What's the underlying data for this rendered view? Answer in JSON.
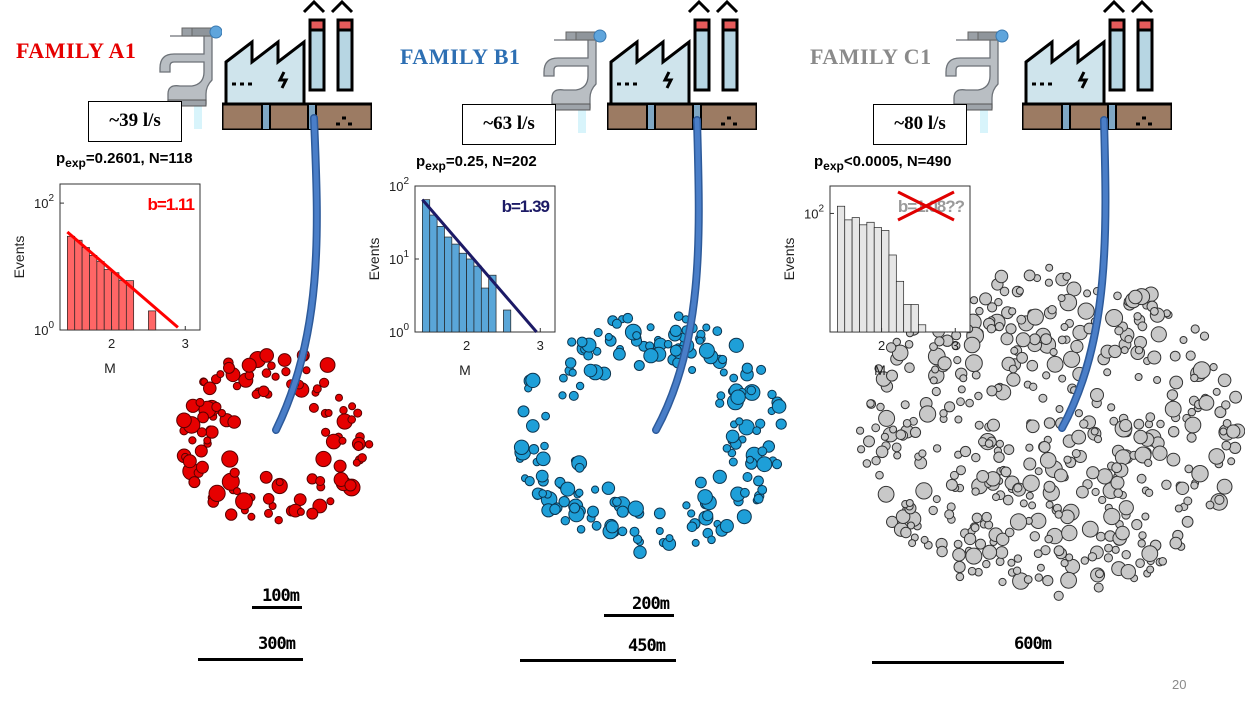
{
  "page_number": "20",
  "colors": {
    "A1": "#e60000",
    "B1": "#1e9fd8",
    "C1": "#c8c8c8",
    "A1_title": "#e60000",
    "B1_title": "#2d6fb3",
    "C1_title": "#8a8a8a",
    "A1_fit": "#ff0000",
    "B1_fit": "#1c1a66",
    "pipe": "#4a7ec8"
  },
  "icons": [
    "faucet-icon",
    "factory-icon"
  ],
  "families": [
    {
      "id": "A1",
      "title": "FAMILY A1",
      "flow": "~39 l/s",
      "pexp_sub": "exp",
      "pexp_rest": "=0.2601, N=118",
      "scales": [
        "100m",
        "300m"
      ],
      "chart_data": {
        "type": "bar",
        "xlabel": "M",
        "ylabel": "Events",
        "yscale": "log",
        "xlim": [
          1.3,
          3.2
        ],
        "ylim": [
          1,
          200
        ],
        "xticks": [
          "2",
          "3"
        ],
        "yticks": [
          "10^0",
          "10^2"
        ],
        "bin_edges": [
          1.4,
          1.5,
          1.6,
          1.7,
          1.8,
          1.9,
          2.0,
          2.1,
          2.2,
          2.3,
          2.4,
          2.5,
          2.6,
          2.7
        ],
        "values": [
          30,
          26,
          20,
          15,
          12,
          9,
          8,
          6,
          6,
          0,
          0,
          2,
          0
        ],
        "fit_label": "b=1.11",
        "fit_line": {
          "x": [
            1.4,
            2.9
          ],
          "y": [
            35,
            1.1
          ]
        },
        "grid": false
      }
    },
    {
      "id": "B1",
      "title": "FAMILY B1",
      "flow": "~63 l/s",
      "pexp_sub": "exp",
      "pexp_rest": "=0.25, N=202",
      "scales": [
        "200m",
        "450m"
      ],
      "chart_data": {
        "type": "bar",
        "xlabel": "M",
        "ylabel": "Events",
        "yscale": "log",
        "xlim": [
          1.3,
          3.2
        ],
        "ylim": [
          1,
          100
        ],
        "xticks": [
          "2",
          "3"
        ],
        "yticks": [
          "10^0",
          "10^1",
          "10^2"
        ],
        "bin_edges": [
          1.4,
          1.5,
          1.6,
          1.7,
          1.8,
          1.9,
          2.0,
          2.1,
          2.2,
          2.3,
          2.4,
          2.5,
          2.6,
          2.7
        ],
        "values": [
          65,
          40,
          28,
          20,
          16,
          12,
          10,
          8,
          4,
          6,
          0,
          2,
          0
        ],
        "fit_label": "b=1.39",
        "fit_line": {
          "x": [
            1.4,
            2.95
          ],
          "y": [
            65,
            0.9
          ]
        },
        "grid": false
      }
    },
    {
      "id": "C1",
      "title": "FAMILY C1",
      "flow": "~80 l/s",
      "pexp_sub": "exp",
      "pexp_rest": "<0.0005, N=490",
      "scales": [
        "600m"
      ],
      "chart_data": {
        "type": "bar",
        "xlabel": "M",
        "ylabel": "Events",
        "yscale": "log",
        "xlim": [
          1.3,
          3.2
        ],
        "ylim": [
          5,
          200
        ],
        "xticks": [
          "2",
          "3"
        ],
        "yticks": [
          "10^2"
        ],
        "bin_edges": [
          1.4,
          1.5,
          1.6,
          1.7,
          1.8,
          1.9,
          2.0,
          2.1,
          2.2,
          2.3,
          2.4,
          2.5,
          2.6,
          2.7
        ],
        "values": [
          120,
          85,
          90,
          75,
          80,
          70,
          65,
          35,
          18,
          10,
          10,
          6,
          0
        ],
        "fit_label": "b=1.08??",
        "fit_crossed": true,
        "grid": false
      }
    }
  ]
}
